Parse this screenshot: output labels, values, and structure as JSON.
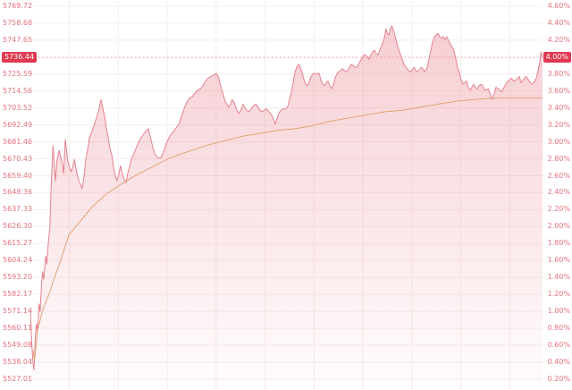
{
  "chart_data": {
    "type": "area",
    "subtype": "intraday index price chart with average-price line",
    "title": "",
    "x_axis": {
      "labels_visible": false,
      "vertical_grid_divisions": 10
    },
    "left_axis": {
      "unit": "index points",
      "labels": [
        "5769.72",
        "5758.68",
        "5747.65",
        "5725.59",
        "5714.56",
        "5703.52",
        "5692.49",
        "5681.46",
        "5670.43",
        "5659.40",
        "5648.36",
        "5637.33",
        "5626.30",
        "5615.27",
        "5604.24",
        "5593.20",
        "5582.17",
        "5571.14",
        "5560.11",
        "5549.08",
        "5538.04",
        "5527.01"
      ]
    },
    "right_axis": {
      "unit": "percent change",
      "labels": [
        "4.60%",
        "4.40%",
        "4.20%",
        "3.80%",
        "3.60%",
        "3.40%",
        "3.20%",
        "3.00%",
        "2.80%",
        "2.60%",
        "2.40%",
        "2.20%",
        "2.00%",
        "1.80%",
        "1.60%",
        "1.40%",
        "1.20%",
        "1.00%",
        "0.80%",
        "0.60%",
        "0.40%",
        "0.20%"
      ]
    },
    "price_scale": {
      "top_gridline": 5769.72,
      "gridline_step": 11.03,
      "gridline_rows": 23
    },
    "current": {
      "price": "5736.44",
      "change_pct": "4.00%",
      "price_value": 5736.44
    },
    "series": [
      {
        "name": "price",
        "style": "zigzag line with gradient area fill",
        "points": [
          [
            0,
            5572
          ],
          [
            3,
            5549
          ],
          [
            5,
            5538
          ],
          [
            7,
            5533
          ],
          [
            10,
            5556
          ],
          [
            12,
            5563
          ],
          [
            14,
            5558
          ],
          [
            17,
            5576
          ],
          [
            19,
            5571
          ],
          [
            22,
            5590
          ],
          [
            24,
            5597
          ],
          [
            26,
            5592
          ],
          [
            30,
            5607
          ],
          [
            32,
            5602
          ],
          [
            35,
            5616
          ],
          [
            38,
            5626
          ],
          [
            40,
            5648
          ],
          [
            44,
            5679
          ],
          [
            46,
            5671
          ],
          [
            48,
            5661
          ],
          [
            49,
            5656
          ],
          [
            52,
            5669
          ],
          [
            56,
            5676
          ],
          [
            59,
            5672
          ],
          [
            63,
            5666
          ],
          [
            65,
            5661
          ],
          [
            68,
            5683
          ],
          [
            70,
            5678
          ],
          [
            73,
            5669
          ],
          [
            77,
            5664
          ],
          [
            80,
            5662
          ],
          [
            84,
            5667
          ],
          [
            86,
            5670
          ],
          [
            89,
            5664
          ],
          [
            93,
            5658
          ],
          [
            96,
            5655
          ],
          [
            101,
            5651
          ],
          [
            105,
            5660
          ],
          [
            108,
            5670
          ],
          [
            112,
            5677
          ],
          [
            115,
            5684
          ],
          [
            119,
            5687
          ],
          [
            122,
            5690
          ],
          [
            126,
            5694
          ],
          [
            129,
            5697
          ],
          [
            133,
            5701
          ],
          [
            136,
            5706
          ],
          [
            138,
            5709
          ],
          [
            141,
            5704
          ],
          [
            145,
            5698
          ],
          [
            148,
            5691
          ],
          [
            152,
            5684
          ],
          [
            155,
            5678
          ],
          [
            159,
            5673
          ],
          [
            162,
            5666
          ],
          [
            166,
            5659
          ],
          [
            169,
            5656
          ],
          [
            173,
            5661
          ],
          [
            176,
            5666
          ],
          [
            180,
            5660
          ],
          [
            183,
            5657
          ],
          [
            187,
            5655
          ],
          [
            190,
            5661
          ],
          [
            194,
            5666
          ],
          [
            197,
            5670
          ],
          [
            201,
            5673
          ],
          [
            206,
            5677
          ],
          [
            211,
            5681
          ],
          [
            216,
            5684
          ],
          [
            222,
            5687
          ],
          [
            227,
            5689
          ],
          [
            230,
            5690
          ],
          [
            234,
            5685
          ],
          [
            239,
            5678
          ],
          [
            244,
            5673
          ],
          [
            250,
            5671
          ],
          [
            255,
            5671
          ],
          [
            260,
            5675
          ],
          [
            265,
            5680
          ],
          [
            272,
            5685
          ],
          [
            281,
            5689
          ],
          [
            290,
            5693
          ],
          [
            295,
            5698
          ],
          [
            300,
            5703
          ],
          [
            305,
            5707
          ],
          [
            311,
            5710
          ],
          [
            316,
            5711
          ],
          [
            321,
            5713
          ],
          [
            326,
            5715
          ],
          [
            332,
            5716
          ],
          [
            337,
            5718
          ],
          [
            342,
            5721
          ],
          [
            347,
            5723
          ],
          [
            353,
            5724
          ],
          [
            358,
            5725
          ],
          [
            363,
            5726
          ],
          [
            367,
            5724
          ],
          [
            370,
            5720
          ],
          [
            373,
            5716
          ],
          [
            377,
            5712
          ],
          [
            380,
            5708
          ],
          [
            384,
            5706
          ],
          [
            387,
            5704
          ],
          [
            391,
            5706
          ],
          [
            394,
            5709
          ],
          [
            398,
            5707
          ],
          [
            401,
            5704
          ],
          [
            405,
            5701
          ],
          [
            408,
            5700
          ],
          [
            412,
            5703
          ],
          [
            415,
            5706
          ],
          [
            419,
            5704
          ],
          [
            422,
            5702
          ],
          [
            426,
            5701
          ],
          [
            429,
            5702
          ],
          [
            435,
            5705
          ],
          [
            440,
            5706
          ],
          [
            445,
            5704
          ],
          [
            450,
            5701
          ],
          [
            456,
            5702
          ],
          [
            461,
            5703
          ],
          [
            466,
            5701
          ],
          [
            471,
            5699
          ],
          [
            475,
            5696
          ],
          [
            478,
            5693
          ],
          [
            482,
            5697
          ],
          [
            485,
            5700
          ],
          [
            489,
            5702
          ],
          [
            494,
            5703
          ],
          [
            499,
            5703
          ],
          [
            503,
            5705
          ],
          [
            506,
            5709
          ],
          [
            510,
            5714
          ],
          [
            513,
            5720
          ],
          [
            517,
            5727
          ],
          [
            520,
            5730
          ],
          [
            524,
            5732
          ],
          [
            527,
            5730
          ],
          [
            531,
            5726
          ],
          [
            534,
            5722
          ],
          [
            538,
            5719
          ],
          [
            541,
            5718
          ],
          [
            545,
            5721
          ],
          [
            548,
            5724
          ],
          [
            553,
            5726
          ],
          [
            558,
            5726
          ],
          [
            564,
            5726
          ],
          [
            567,
            5722
          ],
          [
            571,
            5719
          ],
          [
            574,
            5718
          ],
          [
            578,
            5720
          ],
          [
            581,
            5721
          ],
          [
            585,
            5718
          ],
          [
            588,
            5716
          ],
          [
            592,
            5719
          ],
          [
            595,
            5723
          ],
          [
            599,
            5726
          ],
          [
            602,
            5727
          ],
          [
            606,
            5728
          ],
          [
            609,
            5729
          ],
          [
            613,
            5728
          ],
          [
            616,
            5727
          ],
          [
            620,
            5728
          ],
          [
            623,
            5730
          ],
          [
            627,
            5732
          ],
          [
            630,
            5731
          ],
          [
            634,
            5730
          ],
          [
            637,
            5730
          ],
          [
            641,
            5732
          ],
          [
            644,
            5734
          ],
          [
            648,
            5736
          ],
          [
            651,
            5738
          ],
          [
            654,
            5738
          ],
          [
            658,
            5737
          ],
          [
            661,
            5735
          ],
          [
            665,
            5738
          ],
          [
            668,
            5740
          ],
          [
            672,
            5741
          ],
          [
            675,
            5739
          ],
          [
            679,
            5738
          ],
          [
            682,
            5741
          ],
          [
            686,
            5744
          ],
          [
            689,
            5747
          ],
          [
            692,
            5750
          ],
          [
            694,
            5755
          ],
          [
            697,
            5752
          ],
          [
            700,
            5751
          ],
          [
            703,
            5755
          ],
          [
            706,
            5757
          ],
          [
            710,
            5753
          ],
          [
            714,
            5748
          ],
          [
            717,
            5744
          ],
          [
            721,
            5740
          ],
          [
            726,
            5735
          ],
          [
            731,
            5731
          ],
          [
            738,
            5728
          ],
          [
            743,
            5727
          ],
          [
            749,
            5730
          ],
          [
            754,
            5727
          ],
          [
            758,
            5728
          ],
          [
            764,
            5730
          ],
          [
            770,
            5727
          ],
          [
            775,
            5730
          ],
          [
            778,
            5735
          ],
          [
            782,
            5741
          ],
          [
            785,
            5746
          ],
          [
            789,
            5750
          ],
          [
            792,
            5751
          ],
          [
            796,
            5752
          ],
          [
            799,
            5750
          ],
          [
            803,
            5749
          ],
          [
            806,
            5750
          ],
          [
            810,
            5748
          ],
          [
            813,
            5750
          ],
          [
            817,
            5747
          ],
          [
            822,
            5744
          ],
          [
            827,
            5741
          ],
          [
            831,
            5735
          ],
          [
            834,
            5730
          ],
          [
            838,
            5726
          ],
          [
            841,
            5722
          ],
          [
            845,
            5719
          ],
          [
            848,
            5720
          ],
          [
            852,
            5721
          ],
          [
            855,
            5717
          ],
          [
            859,
            5715
          ],
          [
            862,
            5717
          ],
          [
            866,
            5719
          ],
          [
            869,
            5717
          ],
          [
            873,
            5716
          ],
          [
            876,
            5718
          ],
          [
            880,
            5719
          ],
          [
            883,
            5718
          ],
          [
            888,
            5715
          ],
          [
            894,
            5716
          ],
          [
            899,
            5712
          ],
          [
            902,
            5709
          ],
          [
            906,
            5713
          ],
          [
            909,
            5717
          ],
          [
            914,
            5716
          ],
          [
            920,
            5714
          ],
          [
            925,
            5717
          ],
          [
            930,
            5720
          ],
          [
            936,
            5722
          ],
          [
            939,
            5723
          ],
          [
            944,
            5721
          ],
          [
            949,
            5722
          ],
          [
            955,
            5724
          ],
          [
            958,
            5720
          ],
          [
            963,
            5722
          ],
          [
            968,
            5724
          ],
          [
            974,
            5721
          ],
          [
            979,
            5719
          ],
          [
            983,
            5720
          ],
          [
            988,
            5723
          ],
          [
            991,
            5727
          ],
          [
            995,
            5734
          ],
          [
            997,
            5740
          ],
          [
            1000,
            5736.44
          ]
        ]
      },
      {
        "name": "average_price",
        "style": "smooth line",
        "points": [
          [
            5,
            5546
          ],
          [
            8,
            5539
          ],
          [
            14,
            5559
          ],
          [
            24,
            5572
          ],
          [
            37,
            5583
          ],
          [
            49,
            5595
          ],
          [
            59,
            5604
          ],
          [
            75,
            5621
          ],
          [
            98,
            5630
          ],
          [
            120,
            5639
          ],
          [
            150,
            5648
          ],
          [
            173,
            5653
          ],
          [
            202,
            5659
          ],
          [
            237,
            5665
          ],
          [
            272,
            5671
          ],
          [
            307,
            5675
          ],
          [
            342,
            5679
          ],
          [
            377,
            5682
          ],
          [
            412,
            5685
          ],
          [
            447,
            5687
          ],
          [
            482,
            5689
          ],
          [
            517,
            5690
          ],
          [
            551,
            5692
          ],
          [
            586,
            5695
          ],
          [
            621,
            5697
          ],
          [
            656,
            5699
          ],
          [
            691,
            5701
          ],
          [
            726,
            5702
          ],
          [
            761,
            5704
          ],
          [
            796,
            5706
          ],
          [
            831,
            5708
          ],
          [
            866,
            5709
          ],
          [
            901,
            5710
          ],
          [
            936,
            5710
          ],
          [
            971,
            5710
          ],
          [
            1000,
            5710
          ]
        ]
      }
    ],
    "annotations": {
      "current_price_dotted_line": true
    },
    "legend": {
      "visible": false
    },
    "grid": {
      "horizontal": true,
      "vertical": true
    }
  },
  "colors": {
    "price_line": "#e5828e",
    "area_top": "rgba(232,133,146,0.40)",
    "area_bottom": "rgba(232,133,146,0.02)",
    "average_line": "#e0a478",
    "axis_label": "#e4717f",
    "badge_background": "#e0394f",
    "badge_text": "#ffffff",
    "gridline": "#f7edee",
    "dotted_line": "#eca2ad",
    "background": "#ffffff"
  }
}
